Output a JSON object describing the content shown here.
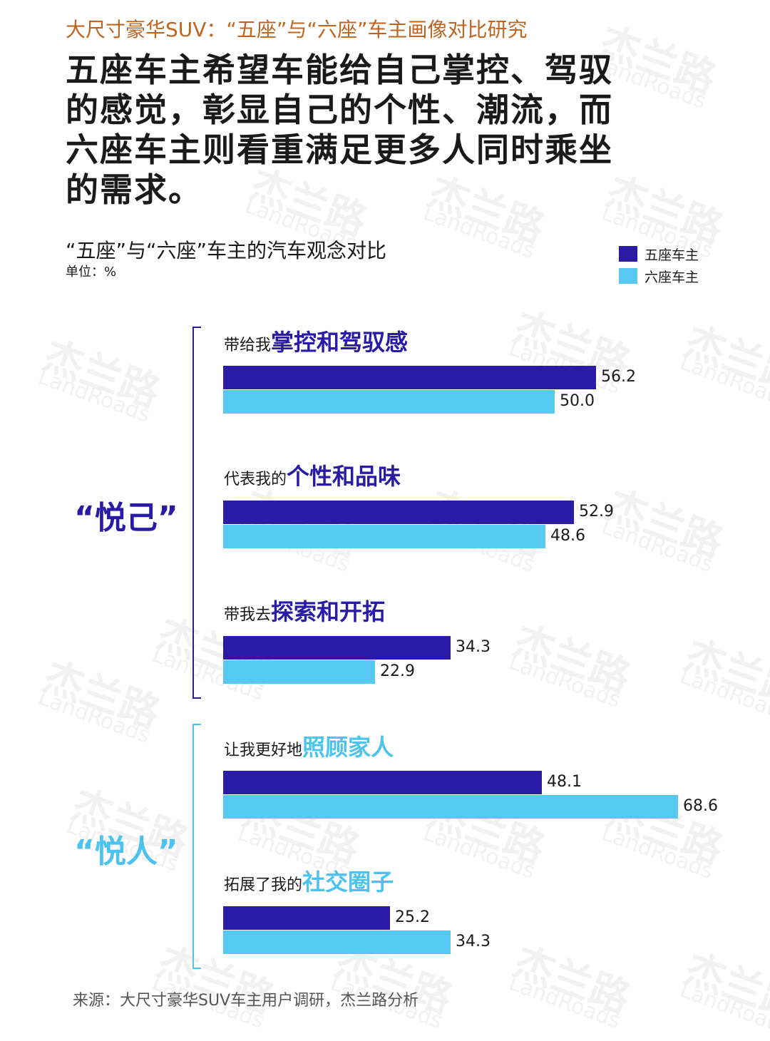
{
  "header": {
    "kicker": "大尺寸豪华SUV：“五座”与“六座”车主画像对比研究",
    "headline": "五座车主希望车能给自己掌控、驾驭的感觉，彰显自己的个性、潮流，而六座车主则看重满足更多人同时乘坐的需求。"
  },
  "watermark": {
    "text": "杰兰路",
    "sub": "LandRoads"
  },
  "footer": {
    "source": "来源：大尺寸豪华SUV车主用户调研，杰兰路分析"
  },
  "colors": {
    "five_seat": "#2a1aa6",
    "six_seat": "#55c9f2",
    "kicker": "#c0641f",
    "yue_ren": "#4cc3ee"
  },
  "chart_data": {
    "type": "bar",
    "orientation": "horizontal",
    "title": "“五座”与“六座”车主的汽车观念对比",
    "unit": "单位：%",
    "legend_position": "top-right",
    "series": [
      {
        "name": "五座车主",
        "values": [
          56.2,
          52.9,
          34.3,
          48.1,
          25.2
        ]
      },
      {
        "name": "六座车主",
        "values": [
          50.0,
          48.6,
          22.9,
          68.6,
          34.3
        ]
      }
    ],
    "categories": [
      {
        "prefix": "带给我",
        "key": "掌控和驾驭感"
      },
      {
        "prefix": "代表我的",
        "key": "个性和品味"
      },
      {
        "prefix": "带我去",
        "key": "探索和开拓"
      },
      {
        "prefix": "让我更好地",
        "key": "照顾家人"
      },
      {
        "prefix": "拓展了我的",
        "key": "社交圈子"
      }
    ],
    "groups": [
      {
        "label": "“悦己”",
        "categories": [
          0,
          1,
          2
        ]
      },
      {
        "label": "“悦人”",
        "categories": [
          3,
          4
        ]
      }
    ],
    "value_labels": [
      [
        "56.2",
        "50.0"
      ],
      [
        "52.9",
        "48.6"
      ],
      [
        "34.3",
        "22.9"
      ],
      [
        "48.1",
        "68.6"
      ],
      [
        "25.2",
        "34.3"
      ]
    ],
    "xlim": [
      0,
      68.6
    ]
  }
}
